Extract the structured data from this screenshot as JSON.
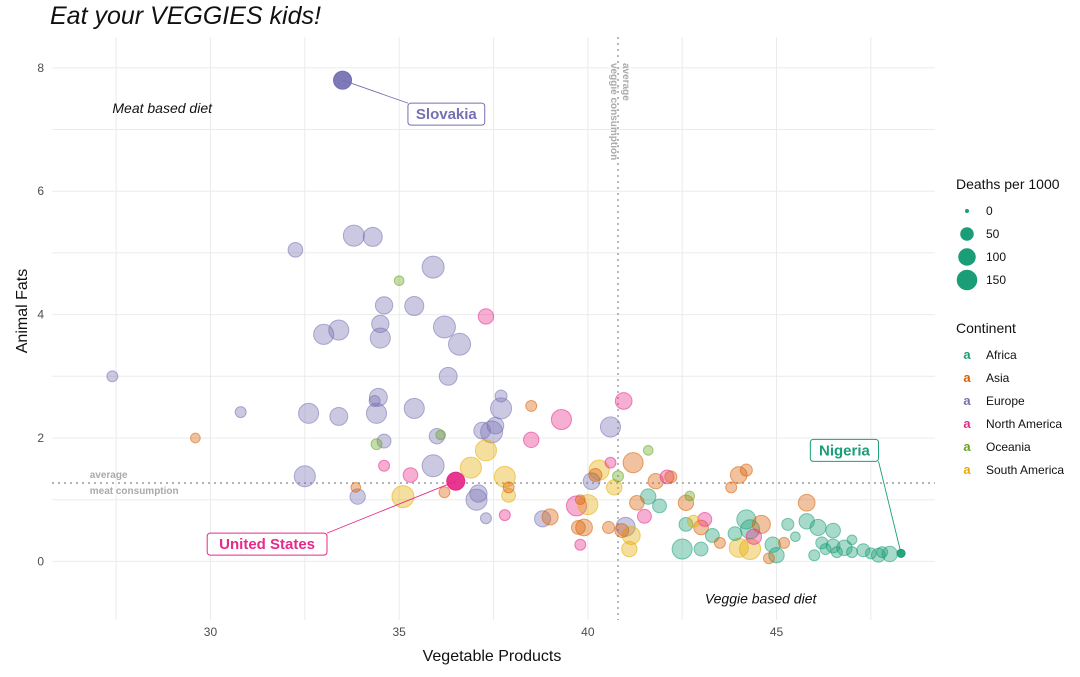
{
  "title": "Eat your VEGGIES kids!",
  "chart_data": {
    "type": "scatter",
    "xlabel": "Vegetable Products",
    "ylabel": "Animal Fats",
    "xlim": [
      25.8,
      49.2
    ],
    "ylim": [
      -0.95,
      8.5
    ],
    "xticks": [
      30,
      35,
      40,
      45
    ],
    "yticks": [
      0,
      2,
      4,
      6,
      8
    ],
    "grid": true,
    "reference_lines": {
      "avg_veg": 40.8,
      "avg_fat": 1.27,
      "veg_label": [
        "average",
        "veggie consumption"
      ],
      "fat_label": [
        "average",
        "meat consumption"
      ]
    },
    "quadrant_labels": [
      {
        "text": "Meat based diet",
        "x": 27.4,
        "y": 7.35
      },
      {
        "text": "Veggie based diet",
        "x": 43.1,
        "y": -0.6
      }
    ],
    "colors": {
      "Africa": "#1b9e77",
      "Asia": "#d95f02",
      "Europe": "#7570b3",
      "North America": "#e7298a",
      "Oceania": "#66a61e",
      "South America": "#e6ab02"
    },
    "size_legend": {
      "title": "Deaths per 1000",
      "values": [
        0,
        50,
        100,
        150
      ]
    },
    "color_legend": {
      "title": "Continent",
      "glyph": "a",
      "entries": [
        "Africa",
        "Asia",
        "Europe",
        "North America",
        "Oceania",
        "South America"
      ]
    },
    "highlights": [
      {
        "label": "Slovakia",
        "continent": "Europe",
        "x": 33.5,
        "y": 7.8,
        "label_x": 36.25,
        "label_y": 7.25
      },
      {
        "label": "United States",
        "continent": "North America",
        "x": 36.5,
        "y": 1.3,
        "label_x": 31.5,
        "label_y": 0.28
      },
      {
        "label": "Nigeria",
        "continent": "Africa",
        "x": 48.3,
        "y": 0.13,
        "label_x": 46.8,
        "label_y": 1.8
      }
    ],
    "points": [
      {
        "c": "Europe",
        "x": 33.5,
        "y": 7.8,
        "d": 60
      },
      {
        "c": "Europe",
        "x": 27.4,
        "y": 3.0,
        "d": 15
      },
      {
        "c": "Europe",
        "x": 30.8,
        "y": 2.42,
        "d": 15
      },
      {
        "c": "Europe",
        "x": 32.25,
        "y": 5.05,
        "d": 35
      },
      {
        "c": "Europe",
        "x": 32.5,
        "y": 1.38,
        "d": 90
      },
      {
        "c": "Europe",
        "x": 32.6,
        "y": 2.4,
        "d": 80
      },
      {
        "c": "Europe",
        "x": 33.0,
        "y": 3.68,
        "d": 80
      },
      {
        "c": "Europe",
        "x": 33.4,
        "y": 3.75,
        "d": 80
      },
      {
        "c": "Europe",
        "x": 33.4,
        "y": 2.35,
        "d": 60
      },
      {
        "c": "Europe",
        "x": 33.8,
        "y": 5.28,
        "d": 90
      },
      {
        "c": "Europe",
        "x": 33.9,
        "y": 1.05,
        "d": 40
      },
      {
        "c": "Europe",
        "x": 34.3,
        "y": 5.26,
        "d": 70
      },
      {
        "c": "Europe",
        "x": 34.4,
        "y": 2.4,
        "d": 80
      },
      {
        "c": "Europe",
        "x": 34.45,
        "y": 2.66,
        "d": 60
      },
      {
        "c": "Europe",
        "x": 34.5,
        "y": 3.62,
        "d": 80
      },
      {
        "c": "Europe",
        "x": 34.5,
        "y": 3.85,
        "d": 55
      },
      {
        "c": "Europe",
        "x": 34.6,
        "y": 4.15,
        "d": 55
      },
      {
        "c": "Europe",
        "x": 34.6,
        "y": 1.95,
        "d": 30
      },
      {
        "c": "Europe",
        "x": 35.4,
        "y": 4.14,
        "d": 70
      },
      {
        "c": "Europe",
        "x": 35.4,
        "y": 2.48,
        "d": 80
      },
      {
        "c": "Europe",
        "x": 35.9,
        "y": 4.77,
        "d": 100
      },
      {
        "c": "Europe",
        "x": 35.9,
        "y": 1.55,
        "d": 100
      },
      {
        "c": "Europe",
        "x": 36.0,
        "y": 2.03,
        "d": 40
      },
      {
        "c": "Europe",
        "x": 36.2,
        "y": 3.8,
        "d": 100
      },
      {
        "c": "Europe",
        "x": 36.3,
        "y": 3.0,
        "d": 60
      },
      {
        "c": "Europe",
        "x": 36.6,
        "y": 3.52,
        "d": 100
      },
      {
        "c": "Europe",
        "x": 37.2,
        "y": 2.12,
        "d": 50
      },
      {
        "c": "Europe",
        "x": 37.45,
        "y": 2.1,
        "d": 100
      },
      {
        "c": "Europe",
        "x": 37.55,
        "y": 2.2,
        "d": 50
      },
      {
        "c": "Europe",
        "x": 37.7,
        "y": 2.48,
        "d": 90
      },
      {
        "c": "Europe",
        "x": 37.7,
        "y": 2.68,
        "d": 20
      },
      {
        "c": "Europe",
        "x": 37.1,
        "y": 1.1,
        "d": 55
      },
      {
        "c": "Europe",
        "x": 37.05,
        "y": 1.0,
        "d": 90
      },
      {
        "c": "Europe",
        "x": 37.3,
        "y": 0.7,
        "d": 15
      },
      {
        "c": "Europe",
        "x": 38.8,
        "y": 0.69,
        "d": 45
      },
      {
        "c": "Europe",
        "x": 40.1,
        "y": 1.3,
        "d": 50
      },
      {
        "c": "Europe",
        "x": 40.6,
        "y": 2.18,
        "d": 80
      },
      {
        "c": "Europe",
        "x": 41.0,
        "y": 0.56,
        "d": 70
      },
      {
        "c": "Europe",
        "x": 34.35,
        "y": 2.6,
        "d": 15
      },
      {
        "c": "North America",
        "x": 36.5,
        "y": 1.3,
        "d": 60
      },
      {
        "c": "North America",
        "x": 37.3,
        "y": 3.97,
        "d": 40
      },
      {
        "c": "North America",
        "x": 39.3,
        "y": 2.3,
        "d": 80
      },
      {
        "c": "North America",
        "x": 38.5,
        "y": 1.97,
        "d": 40
      },
      {
        "c": "North America",
        "x": 40.95,
        "y": 2.6,
        "d": 50
      },
      {
        "c": "North America",
        "x": 39.7,
        "y": 0.9,
        "d": 80
      },
      {
        "c": "North America",
        "x": 35.3,
        "y": 1.4,
        "d": 35
      },
      {
        "c": "North America",
        "x": 34.6,
        "y": 1.55,
        "d": 15
      },
      {
        "c": "North America",
        "x": 40.6,
        "y": 1.6,
        "d": 15
      },
      {
        "c": "North America",
        "x": 41.5,
        "y": 0.73,
        "d": 30
      },
      {
        "c": "North America",
        "x": 42.1,
        "y": 1.37,
        "d": 30
      },
      {
        "c": "North America",
        "x": 43.1,
        "y": 0.68,
        "d": 30
      },
      {
        "c": "North America",
        "x": 44.4,
        "y": 0.4,
        "d": 40
      },
      {
        "c": "North America",
        "x": 39.8,
        "y": 0.27,
        "d": 15
      },
      {
        "c": "North America",
        "x": 37.8,
        "y": 0.75,
        "d": 15
      },
      {
        "c": "South America",
        "x": 35.1,
        "y": 1.05,
        "d": 100
      },
      {
        "c": "South America",
        "x": 36.9,
        "y": 1.52,
        "d": 90
      },
      {
        "c": "South America",
        "x": 37.3,
        "y": 1.8,
        "d": 90
      },
      {
        "c": "South America",
        "x": 37.8,
        "y": 1.37,
        "d": 90
      },
      {
        "c": "South America",
        "x": 37.9,
        "y": 1.07,
        "d": 30
      },
      {
        "c": "South America",
        "x": 40.0,
        "y": 0.92,
        "d": 80
      },
      {
        "c": "South America",
        "x": 40.3,
        "y": 1.48,
        "d": 80
      },
      {
        "c": "South America",
        "x": 40.7,
        "y": 1.2,
        "d": 40
      },
      {
        "c": "South America",
        "x": 41.15,
        "y": 0.42,
        "d": 60
      },
      {
        "c": "South America",
        "x": 41.1,
        "y": 0.2,
        "d": 40
      },
      {
        "c": "South America",
        "x": 44.0,
        "y": 0.22,
        "d": 70
      },
      {
        "c": "South America",
        "x": 42.8,
        "y": 0.65,
        "d": 20
      },
      {
        "c": "South America",
        "x": 44.3,
        "y": 0.2,
        "d": 90
      },
      {
        "c": "Asia",
        "x": 29.6,
        "y": 2.0,
        "d": 10
      },
      {
        "c": "Asia",
        "x": 33.85,
        "y": 1.2,
        "d": 10
      },
      {
        "c": "Asia",
        "x": 36.2,
        "y": 1.12,
        "d": 15
      },
      {
        "c": "Asia",
        "x": 38.5,
        "y": 2.52,
        "d": 15
      },
      {
        "c": "Asia",
        "x": 37.9,
        "y": 1.2,
        "d": 15
      },
      {
        "c": "Asia",
        "x": 39.0,
        "y": 0.72,
        "d": 45
      },
      {
        "c": "Asia",
        "x": 39.75,
        "y": 0.55,
        "d": 30
      },
      {
        "c": "Asia",
        "x": 39.9,
        "y": 0.55,
        "d": 50
      },
      {
        "c": "Asia",
        "x": 40.2,
        "y": 1.4,
        "d": 25
      },
      {
        "c": "Asia",
        "x": 40.55,
        "y": 0.55,
        "d": 20
      },
      {
        "c": "Asia",
        "x": 40.9,
        "y": 0.5,
        "d": 30
      },
      {
        "c": "Asia",
        "x": 41.3,
        "y": 0.95,
        "d": 35
      },
      {
        "c": "Asia",
        "x": 41.2,
        "y": 1.6,
        "d": 80
      },
      {
        "c": "Asia",
        "x": 41.8,
        "y": 1.3,
        "d": 40
      },
      {
        "c": "Asia",
        "x": 42.2,
        "y": 1.37,
        "d": 20
      },
      {
        "c": "Asia",
        "x": 42.6,
        "y": 0.95,
        "d": 40
      },
      {
        "c": "Asia",
        "x": 43.0,
        "y": 0.55,
        "d": 35
      },
      {
        "c": "Asia",
        "x": 43.8,
        "y": 1.2,
        "d": 15
      },
      {
        "c": "Asia",
        "x": 44.0,
        "y": 1.4,
        "d": 50
      },
      {
        "c": "Asia",
        "x": 44.2,
        "y": 1.48,
        "d": 20
      },
      {
        "c": "Asia",
        "x": 44.6,
        "y": 0.6,
        "d": 60
      },
      {
        "c": "Asia",
        "x": 45.8,
        "y": 0.95,
        "d": 50
      },
      {
        "c": "Asia",
        "x": 45.2,
        "y": 0.3,
        "d": 15
      },
      {
        "c": "Asia",
        "x": 44.8,
        "y": 0.05,
        "d": 15
      },
      {
        "c": "Asia",
        "x": 39.8,
        "y": 1.0,
        "d": 10
      },
      {
        "c": "Asia",
        "x": 43.5,
        "y": 0.3,
        "d": 15
      },
      {
        "c": "Oceania",
        "x": 34.4,
        "y": 1.9,
        "d": 15
      },
      {
        "c": "Oceania",
        "x": 35.0,
        "y": 4.55,
        "d": 10
      },
      {
        "c": "Oceania",
        "x": 40.8,
        "y": 1.38,
        "d": 15
      },
      {
        "c": "Oceania",
        "x": 36.1,
        "y": 2.05,
        "d": 10
      },
      {
        "c": "Oceania",
        "x": 41.6,
        "y": 1.8,
        "d": 10
      },
      {
        "c": "Oceania",
        "x": 42.7,
        "y": 1.06,
        "d": 10
      },
      {
        "c": "Africa",
        "x": 41.6,
        "y": 1.05,
        "d": 40
      },
      {
        "c": "Africa",
        "x": 41.9,
        "y": 0.9,
        "d": 30
      },
      {
        "c": "Africa",
        "x": 42.6,
        "y": 0.6,
        "d": 30
      },
      {
        "c": "Africa",
        "x": 42.5,
        "y": 0.2,
        "d": 80
      },
      {
        "c": "Africa",
        "x": 43.0,
        "y": 0.2,
        "d": 30
      },
      {
        "c": "Africa",
        "x": 43.3,
        "y": 0.42,
        "d": 30
      },
      {
        "c": "Africa",
        "x": 43.9,
        "y": 0.45,
        "d": 30
      },
      {
        "c": "Africa",
        "x": 44.2,
        "y": 0.68,
        "d": 70
      },
      {
        "c": "Africa",
        "x": 44.3,
        "y": 0.52,
        "d": 70
      },
      {
        "c": "Africa",
        "x": 44.9,
        "y": 0.27,
        "d": 40
      },
      {
        "c": "Africa",
        "x": 45.0,
        "y": 0.1,
        "d": 40
      },
      {
        "c": "Africa",
        "x": 45.3,
        "y": 0.6,
        "d": 20
      },
      {
        "c": "Africa",
        "x": 45.5,
        "y": 0.4,
        "d": 10
      },
      {
        "c": "Africa",
        "x": 45.8,
        "y": 0.65,
        "d": 40
      },
      {
        "c": "Africa",
        "x": 46.0,
        "y": 0.1,
        "d": 15
      },
      {
        "c": "Africa",
        "x": 46.1,
        "y": 0.55,
        "d": 45
      },
      {
        "c": "Africa",
        "x": 46.2,
        "y": 0.3,
        "d": 20
      },
      {
        "c": "Africa",
        "x": 46.3,
        "y": 0.2,
        "d": 15
      },
      {
        "c": "Africa",
        "x": 46.5,
        "y": 0.5,
        "d": 35
      },
      {
        "c": "Africa",
        "x": 46.5,
        "y": 0.25,
        "d": 30
      },
      {
        "c": "Africa",
        "x": 46.6,
        "y": 0.15,
        "d": 15
      },
      {
        "c": "Africa",
        "x": 46.8,
        "y": 0.22,
        "d": 40
      },
      {
        "c": "Africa",
        "x": 47.0,
        "y": 0.15,
        "d": 15
      },
      {
        "c": "Africa",
        "x": 47.0,
        "y": 0.35,
        "d": 10
      },
      {
        "c": "Africa",
        "x": 47.3,
        "y": 0.18,
        "d": 25
      },
      {
        "c": "Africa",
        "x": 47.5,
        "y": 0.13,
        "d": 15
      },
      {
        "c": "Africa",
        "x": 47.7,
        "y": 0.1,
        "d": 30
      },
      {
        "c": "Africa",
        "x": 47.8,
        "y": 0.15,
        "d": 15
      },
      {
        "c": "Africa",
        "x": 48.0,
        "y": 0.12,
        "d": 40
      },
      {
        "c": "Africa",
        "x": 48.3,
        "y": 0.13,
        "d": 5
      }
    ]
  }
}
